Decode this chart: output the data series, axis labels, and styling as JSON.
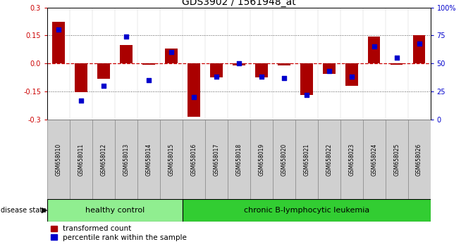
{
  "title": "GDS3902 / 1561948_at",
  "samples": [
    "GSM658010",
    "GSM658011",
    "GSM658012",
    "GSM658013",
    "GSM658014",
    "GSM658015",
    "GSM658016",
    "GSM658017",
    "GSM658018",
    "GSM658019",
    "GSM658020",
    "GSM658021",
    "GSM658022",
    "GSM658023",
    "GSM658024",
    "GSM658025",
    "GSM658026"
  ],
  "red_values": [
    0.225,
    -0.155,
    -0.08,
    0.1,
    -0.005,
    0.08,
    -0.285,
    -0.075,
    -0.01,
    -0.075,
    -0.01,
    -0.17,
    -0.055,
    -0.12,
    0.145,
    -0.005,
    0.15
  ],
  "blue_values_pct": [
    80,
    17,
    30,
    74,
    35,
    60,
    20,
    38,
    50,
    38,
    37,
    22,
    43,
    38,
    65,
    55,
    68
  ],
  "healthy_control_count": 6,
  "ylim": [
    -0.3,
    0.3
  ],
  "y2lim": [
    0,
    100
  ],
  "yticks": [
    -0.3,
    -0.15,
    0.0,
    0.15,
    0.3
  ],
  "y2ticks": [
    0,
    25,
    50,
    75,
    100
  ],
  "red_color": "#AA0000",
  "blue_color": "#0000CC",
  "zero_line_color": "#CC0000",
  "dotted_line_color": "#555555",
  "healthy_bg": "#90EE90",
  "leukemia_bg": "#32CD32",
  "disease_label_healthy": "healthy control",
  "disease_label_leukemia": "chronic B-lymphocytic leukemia",
  "legend_red": "transformed count",
  "legend_blue": "percentile rank within the sample",
  "bar_width": 0.55
}
